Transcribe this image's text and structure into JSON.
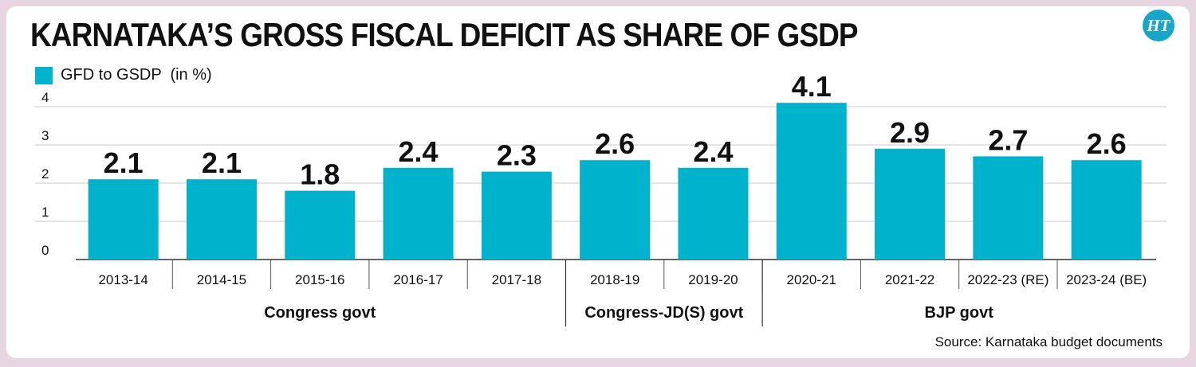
{
  "header": {
    "title": "KARNATAKA’S GROSS FISCAL DEFICIT AS SHARE OF GSDP",
    "logo_text": "HT"
  },
  "legend": {
    "label": "GFD to GSDP  (in %)",
    "color": "#00b2cb"
  },
  "footer": {
    "source": "Source: Karnataka budget documents"
  },
  "chart_data": {
    "type": "bar",
    "categories": [
      "2013-14",
      "2014-15",
      "2015-16",
      "2016-17",
      "2017-18",
      "2018-19",
      "2019-20",
      "2020-21",
      "2021-22",
      "2022-23 (RE)",
      "2023-24 (BE)"
    ],
    "series": [
      {
        "name": "GFD to GSDP  (in %)",
        "values": [
          2.1,
          2.1,
          1.8,
          2.4,
          2.3,
          2.6,
          2.4,
          4.1,
          2.9,
          2.7,
          2.6
        ]
      }
    ],
    "value_labels": [
      "2.1",
      "2.1",
      "1.8",
      "2.4",
      "2.3",
      "2.6",
      "2.4",
      "4.1",
      "2.9",
      "2.7",
      "2.6"
    ],
    "yticks": [
      "0",
      "1",
      "2",
      "3",
      "4"
    ],
    "ylim": [
      0,
      4.3
    ],
    "grid": true,
    "legend_position": "top-left",
    "bar_color": "#00b2cb",
    "groups": [
      {
        "label": "Congress govt",
        "categories": [
          "2013-14",
          "2014-15",
          "2015-16",
          "2016-17",
          "2017-18"
        ]
      },
      {
        "label": "Congress-JD(S) govt",
        "categories": [
          "2018-19",
          "2019-20"
        ]
      },
      {
        "label": "BJP govt",
        "categories": [
          "2020-21",
          "2021-22",
          "2022-23 (RE)",
          "2023-24 (BE)"
        ]
      }
    ]
  }
}
